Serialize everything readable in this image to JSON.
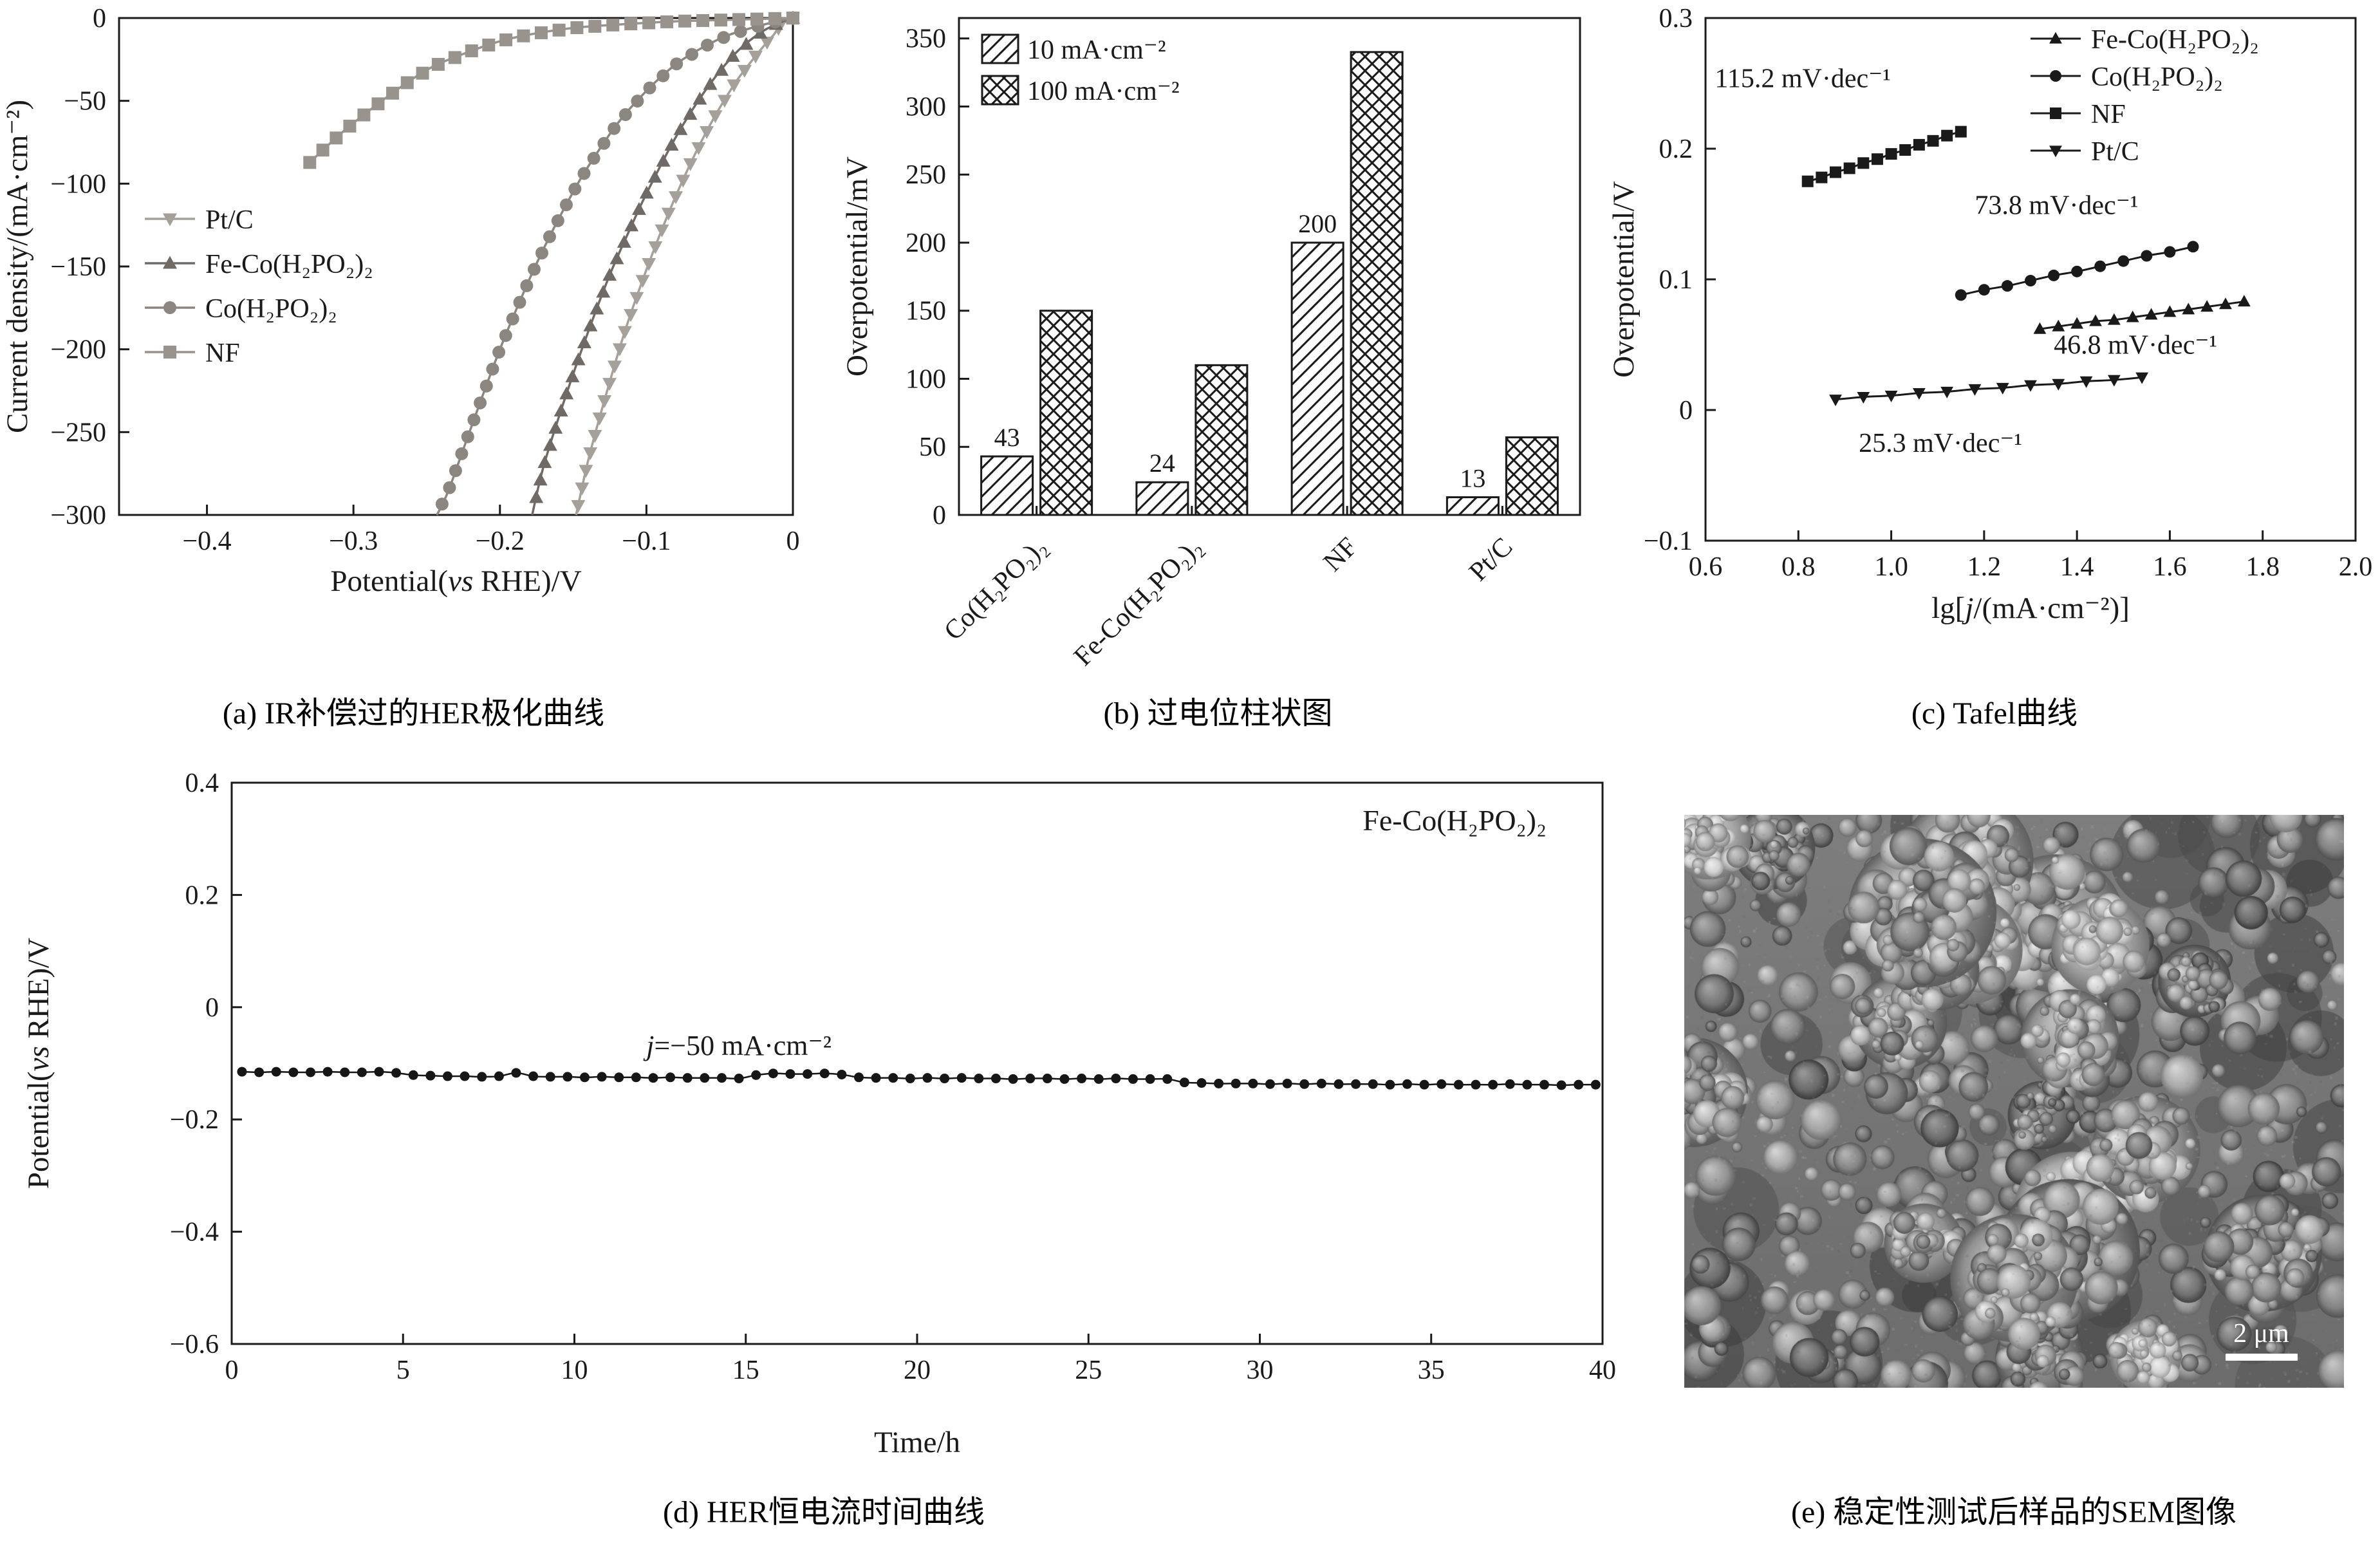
{
  "figure": {
    "captions": {
      "a": "(a) IR补偿过的HER极化曲线",
      "b": "(b) 过电位柱状图",
      "c": "(c) Tafel曲线",
      "d": "(d) HER恒电流时间曲线",
      "e": "(e) 稳定性测试后样品的SEM图像"
    },
    "sem": {
      "scale_bar_label": "2 μm"
    },
    "colors": {
      "axis": "#1a1a1a",
      "background": "#ffffff"
    }
  },
  "chart_data": [
    {
      "id": "a",
      "type": "line",
      "title": "",
      "xlabel": "Potential(vs RHE)/V",
      "ylabel": "Current density/(mA·cm⁻²)",
      "xlim": [
        -0.46,
        0
      ],
      "ylim": [
        -300,
        0
      ],
      "xticks": [
        -0.4,
        -0.3,
        -0.2,
        -0.1,
        0
      ],
      "xtick_labels": [
        "−0.4",
        "−0.3",
        "−0.2",
        "−0.1",
        "0"
      ],
      "yticks": [
        0,
        -50,
        -100,
        -150,
        -200,
        -250,
        -300
      ],
      "ytick_labels": [
        "0",
        "−50",
        "−100",
        "−150",
        "−200",
        "−250",
        "−300"
      ],
      "legend_position": "center-left",
      "grid": false,
      "series": [
        {
          "name": "Pt/C",
          "marker": "triangle-down",
          "color": "#a6a09a",
          "points": [
            [
              0,
              0
            ],
            [
              -0.008,
              -4
            ],
            [
              -0.013,
              -10
            ],
            [
              -0.02,
              -17
            ],
            [
              -0.03,
              -28
            ],
            [
              -0.04,
              -40
            ],
            [
              -0.055,
              -62
            ],
            [
              -0.07,
              -88
            ],
            [
              -0.085,
              -118
            ],
            [
              -0.1,
              -152
            ],
            [
              -0.115,
              -190
            ],
            [
              -0.13,
              -235
            ],
            [
              -0.14,
              -268
            ],
            [
              -0.148,
              -300
            ]
          ]
        },
        {
          "name": "Fe-Co(H₂PO₂)₂",
          "marker": "triangle-up",
          "color": "#6f6a66",
          "points": [
            [
              0,
              0
            ],
            [
              -0.012,
              -4
            ],
            [
              -0.024,
              -10
            ],
            [
              -0.04,
              -22
            ],
            [
              -0.06,
              -44
            ],
            [
              -0.08,
              -72
            ],
            [
              -0.1,
              -106
            ],
            [
              -0.11,
              -125
            ],
            [
              -0.125,
              -155
            ],
            [
              -0.14,
              -190
            ],
            [
              -0.155,
              -228
            ],
            [
              -0.17,
              -270
            ],
            [
              -0.178,
              -300
            ]
          ]
        },
        {
          "name": "Co(H₂PO₂)₂",
          "marker": "circle",
          "color": "#8c8680",
          "points": [
            [
              0,
              0
            ],
            [
              -0.02,
              -4
            ],
            [
              -0.043,
              -10
            ],
            [
              -0.06,
              -17
            ],
            [
              -0.08,
              -28
            ],
            [
              -0.1,
              -44
            ],
            [
              -0.12,
              -64
            ],
            [
              -0.14,
              -90
            ],
            [
              -0.15,
              -105
            ],
            [
              -0.165,
              -130
            ],
            [
              -0.18,
              -158
            ],
            [
              -0.2,
              -200
            ],
            [
              -0.22,
              -248
            ],
            [
              -0.235,
              -285
            ],
            [
              -0.243,
              -300
            ]
          ]
        },
        {
          "name": "NF",
          "marker": "square",
          "color": "#99938d",
          "points": [
            [
              0,
              0
            ],
            [
              -0.04,
              -1
            ],
            [
              -0.08,
              -2
            ],
            [
              -0.12,
              -4
            ],
            [
              -0.15,
              -6
            ],
            [
              -0.18,
              -10
            ],
            [
              -0.2,
              -14
            ],
            [
              -0.22,
              -20
            ],
            [
              -0.245,
              -29
            ],
            [
              -0.265,
              -40
            ],
            [
              -0.285,
              -53
            ],
            [
              -0.305,
              -67
            ],
            [
              -0.32,
              -79
            ],
            [
              -0.332,
              -89
            ]
          ]
        }
      ]
    },
    {
      "id": "b",
      "type": "bar",
      "title": "",
      "xlabel": "",
      "ylabel": "Overpotential/mV",
      "ylim": [
        0,
        365
      ],
      "yticks": [
        0,
        50,
        100,
        150,
        200,
        250,
        300,
        350
      ],
      "ytick_labels": [
        "0",
        "50",
        "100",
        "150",
        "200",
        "250",
        "300",
        "350"
      ],
      "legend_position": "top-left",
      "grid": false,
      "categories": [
        "Co(H₂PO₂)₂",
        "Fe-Co(H₂PO₂)₂",
        "NF",
        "Pt/C"
      ],
      "series": [
        {
          "name": "10 mA·cm⁻²",
          "hatch": "diag",
          "values": [
            43,
            24,
            200,
            13
          ],
          "show_labels": true
        },
        {
          "name": "100 mA·cm⁻²",
          "hatch": "cross",
          "values": [
            150,
            110,
            340,
            57
          ],
          "show_labels": false
        }
      ]
    },
    {
      "id": "c",
      "type": "scatter",
      "title": "",
      "xlabel": "lg[j/(mA·cm⁻²)]",
      "ylabel": "Overpotential/V",
      "xlim": [
        0.6,
        2.0
      ],
      "ylim": [
        -0.1,
        0.3
      ],
      "xticks": [
        0.6,
        0.8,
        1.0,
        1.2,
        1.4,
        1.6,
        1.8,
        2.0
      ],
      "xtick_labels": [
        "0.6",
        "0.8",
        "1.0",
        "1.2",
        "1.4",
        "1.6",
        "1.8",
        "2.0"
      ],
      "yticks": [
        -0.1,
        0,
        0.1,
        0.2,
        0.3
      ],
      "ytick_labels": [
        "−0.1",
        "0",
        "0.1",
        "0.2",
        "0.3"
      ],
      "legend_position": "top-right",
      "grid": false,
      "series": [
        {
          "name": "Fe-Co(H₂PO₂)₂",
          "marker": "triangle-up",
          "color": "#1a1a1a",
          "tafel_slope_mV_dec": 46.8,
          "points": [
            [
              1.32,
              0.062
            ],
            [
              1.36,
              0.064
            ],
            [
              1.4,
              0.066
            ],
            [
              1.44,
              0.068
            ],
            [
              1.48,
              0.069
            ],
            [
              1.52,
              0.071
            ],
            [
              1.56,
              0.073
            ],
            [
              1.6,
              0.075
            ],
            [
              1.64,
              0.077
            ],
            [
              1.68,
              0.079
            ],
            [
              1.72,
              0.081
            ],
            [
              1.76,
              0.083
            ]
          ]
        },
        {
          "name": "Co(H₂PO₂)₂",
          "marker": "circle",
          "color": "#1a1a1a",
          "tafel_slope_mV_dec": 73.8,
          "points": [
            [
              1.15,
              0.088
            ],
            [
              1.2,
              0.092
            ],
            [
              1.25,
              0.095
            ],
            [
              1.3,
              0.099
            ],
            [
              1.35,
              0.103
            ],
            [
              1.4,
              0.106
            ],
            [
              1.45,
              0.11
            ],
            [
              1.5,
              0.114
            ],
            [
              1.55,
              0.118
            ],
            [
              1.6,
              0.121
            ],
            [
              1.65,
              0.125
            ]
          ]
        },
        {
          "name": "NF",
          "marker": "square",
          "color": "#1a1a1a",
          "tafel_slope_mV_dec": 115.2,
          "points": [
            [
              0.82,
              0.175
            ],
            [
              0.85,
              0.178
            ],
            [
              0.88,
              0.182
            ],
            [
              0.91,
              0.185
            ],
            [
              0.94,
              0.189
            ],
            [
              0.97,
              0.192
            ],
            [
              1.0,
              0.196
            ],
            [
              1.03,
              0.199
            ],
            [
              1.06,
              0.203
            ],
            [
              1.09,
              0.206
            ],
            [
              1.12,
              0.21
            ],
            [
              1.15,
              0.213
            ]
          ]
        },
        {
          "name": "Pt/C",
          "marker": "triangle-down",
          "color": "#1a1a1a",
          "tafel_slope_mV_dec": 25.3,
          "points": [
            [
              0.88,
              0.008
            ],
            [
              0.94,
              0.01
            ],
            [
              1.0,
              0.011
            ],
            [
              1.06,
              0.013
            ],
            [
              1.12,
              0.014
            ],
            [
              1.18,
              0.016
            ],
            [
              1.24,
              0.017
            ],
            [
              1.3,
              0.019
            ],
            [
              1.36,
              0.02
            ],
            [
              1.42,
              0.022
            ],
            [
              1.48,
              0.023
            ],
            [
              1.54,
              0.025
            ]
          ]
        }
      ],
      "annotations": [
        {
          "text": "115.2 mV·dec⁻¹",
          "x": 0.62,
          "y": 0.247,
          "anchor": "start",
          "size": 42
        },
        {
          "text": "73.8 mV·dec⁻¹",
          "x": 1.18,
          "y": 0.15,
          "anchor": "start",
          "size": 42
        },
        {
          "text": "46.8 mV·dec⁻¹",
          "x": 1.35,
          "y": 0.043,
          "anchor": "start",
          "size": 42
        },
        {
          "text": "25.3 mV·dec⁻¹",
          "x": 0.93,
          "y": -0.032,
          "anchor": "start",
          "size": 42
        }
      ]
    },
    {
      "id": "d",
      "type": "line",
      "title": "",
      "xlabel": "Time/h",
      "ylabel": "Potential(vs RHE)/V",
      "xlim": [
        0,
        40
      ],
      "ylim": [
        -0.6,
        0.4
      ],
      "xticks": [
        0,
        5,
        10,
        15,
        20,
        25,
        30,
        35,
        40
      ],
      "xtick_labels": [
        "0",
        "5",
        "10",
        "15",
        "20",
        "25",
        "30",
        "35",
        "40"
      ],
      "yticks": [
        -0.6,
        -0.4,
        -0.2,
        0,
        0.2,
        0.4
      ],
      "ytick_labels": [
        "−0.6",
        "−0.4",
        "−0.2",
        "0",
        "0.2",
        "0.4"
      ],
      "grid": false,
      "annotations": [
        {
          "text": "j=−50 mA·cm⁻²",
          "x": 14.8,
          "y": -0.085,
          "anchor": "middle",
          "size": 44
        },
        {
          "text": "Fe-Co(H₂PO₂)₂",
          "x": 33.0,
          "y": 0.315,
          "anchor": "start",
          "size": 46
        }
      ],
      "series": [
        {
          "name": "Fe-Co(H₂PO₂)₂",
          "marker": "circle",
          "color": "#161616",
          "points": [
            [
              0.3,
              -0.115
            ],
            [
              0.8,
              -0.116
            ],
            [
              1.3,
              -0.115
            ],
            [
              1.8,
              -0.116
            ],
            [
              2.3,
              -0.116
            ],
            [
              2.8,
              -0.115
            ],
            [
              3.3,
              -0.116
            ],
            [
              3.8,
              -0.116
            ],
            [
              4.3,
              -0.115
            ],
            [
              4.8,
              -0.117
            ],
            [
              5.3,
              -0.121
            ],
            [
              5.8,
              -0.122
            ],
            [
              6.3,
              -0.123
            ],
            [
              6.8,
              -0.123
            ],
            [
              7.3,
              -0.124
            ],
            [
              7.8,
              -0.123
            ],
            [
              8.3,
              -0.117
            ],
            [
              8.8,
              -0.123
            ],
            [
              9.3,
              -0.124
            ],
            [
              9.8,
              -0.124
            ],
            [
              10.3,
              -0.125
            ],
            [
              10.8,
              -0.124
            ],
            [
              11.3,
              -0.125
            ],
            [
              11.8,
              -0.125
            ],
            [
              12.3,
              -0.126
            ],
            [
              12.8,
              -0.125
            ],
            [
              13.3,
              -0.126
            ],
            [
              13.8,
              -0.126
            ],
            [
              14.3,
              -0.126
            ],
            [
              14.8,
              -0.127
            ],
            [
              15.3,
              -0.121
            ],
            [
              15.8,
              -0.118
            ],
            [
              16.3,
              -0.119
            ],
            [
              16.8,
              -0.119
            ],
            [
              17.3,
              -0.118
            ],
            [
              17.8,
              -0.12
            ],
            [
              18.3,
              -0.125
            ],
            [
              18.8,
              -0.126
            ],
            [
              19.3,
              -0.126
            ],
            [
              19.8,
              -0.127
            ],
            [
              20.3,
              -0.126
            ],
            [
              20.8,
              -0.127
            ],
            [
              21.3,
              -0.126
            ],
            [
              21.8,
              -0.127
            ],
            [
              22.3,
              -0.127
            ],
            [
              22.8,
              -0.128
            ],
            [
              23.3,
              -0.127
            ],
            [
              23.8,
              -0.127
            ],
            [
              24.3,
              -0.128
            ],
            [
              24.8,
              -0.127
            ],
            [
              25.3,
              -0.128
            ],
            [
              25.8,
              -0.127
            ],
            [
              26.3,
              -0.128
            ],
            [
              26.8,
              -0.128
            ],
            [
              27.3,
              -0.128
            ],
            [
              27.8,
              -0.134
            ],
            [
              28.3,
              -0.135
            ],
            [
              28.8,
              -0.136
            ],
            [
              29.3,
              -0.136
            ],
            [
              29.8,
              -0.136
            ],
            [
              30.3,
              -0.137
            ],
            [
              30.8,
              -0.136
            ],
            [
              31.3,
              -0.137
            ],
            [
              31.8,
              -0.136
            ],
            [
              32.3,
              -0.137
            ],
            [
              32.8,
              -0.137
            ],
            [
              33.3,
              -0.137
            ],
            [
              33.8,
              -0.138
            ],
            [
              34.3,
              -0.137
            ],
            [
              34.8,
              -0.138
            ],
            [
              35.3,
              -0.137
            ],
            [
              35.8,
              -0.138
            ],
            [
              36.3,
              -0.138
            ],
            [
              36.8,
              -0.138
            ],
            [
              37.3,
              -0.137
            ],
            [
              37.8,
              -0.138
            ],
            [
              38.3,
              -0.138
            ],
            [
              38.8,
              -0.139
            ],
            [
              39.3,
              -0.138
            ],
            [
              39.8,
              -0.138
            ]
          ]
        }
      ]
    }
  ]
}
